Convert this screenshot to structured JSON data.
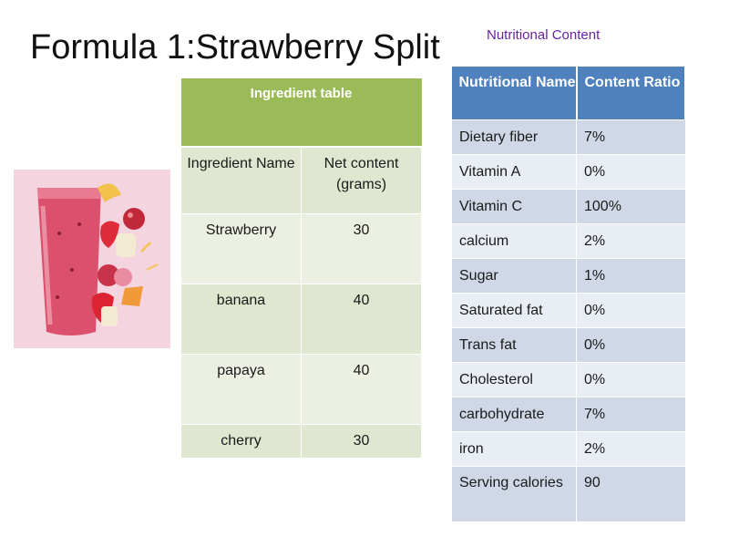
{
  "slide": {
    "title": "Formula 1:Strawberry Split",
    "nutrition_heading": "Nutritional Content"
  },
  "ingredient_table": {
    "caption": "Ingredient table",
    "headers": [
      "Ingredient Name",
      "Net content (grams)"
    ],
    "rows": [
      {
        "name": "Strawberry",
        "grams": "30"
      },
      {
        "name": "banana",
        "grams": "40"
      },
      {
        "name": "papaya",
        "grams": "40"
      },
      {
        "name": "cherry",
        "grams": "30"
      }
    ]
  },
  "nutrition_table": {
    "headers": [
      "Nutritional Name",
      "Content Ratio"
    ],
    "rows": [
      {
        "name": "Dietary fiber",
        "ratio": "7%"
      },
      {
        "name": "Vitamin A",
        "ratio": "0%"
      },
      {
        "name": "Vitamin C",
        "ratio": "100%"
      },
      {
        "name": "calcium",
        "ratio": "2%"
      },
      {
        "name": "Sugar",
        "ratio": "1%"
      },
      {
        "name": "Saturated fat",
        "ratio": "0%"
      },
      {
        "name": "Trans fat",
        "ratio": "0%"
      },
      {
        "name": "Cholesterol",
        "ratio": "0%"
      },
      {
        "name": "carbohydrate",
        "ratio": "7%"
      },
      {
        "name": "iron",
        "ratio": "2%"
      },
      {
        "name": "Serving calories",
        "ratio": "90"
      }
    ]
  },
  "colors": {
    "ingredient_header": "#9bbb59",
    "nutrition_header": "#4f81bd",
    "heading_purple": "#6a1fa6"
  }
}
